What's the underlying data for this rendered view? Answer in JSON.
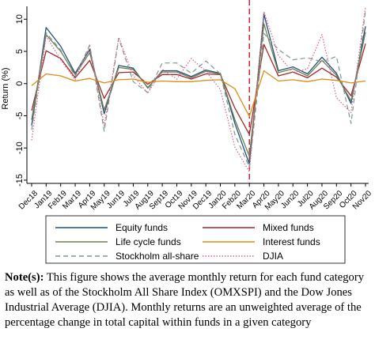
{
  "chart_data": {
    "type": "line",
    "ylabel": "Return (%)",
    "xlabel": "",
    "ylim": [
      -15.5,
      12
    ],
    "yticks": [
      -15,
      -10,
      -5,
      0,
      5,
      10
    ],
    "grid": false,
    "legend_position": "below",
    "vline": {
      "category": "Mar20",
      "color": "#c0182a",
      "style": "dashed"
    },
    "categories": [
      "Dec18",
      "Jan19",
      "Feb19",
      "Mar19",
      "Apr19",
      "May19",
      "Jun19",
      "Jul19",
      "Aug19",
      "Sep19",
      "Oct19",
      "Nov19",
      "Dec19",
      "Jan20",
      "Feb20",
      "Mar20",
      "Apr20",
      "May20",
      "Jun20",
      "Jul20",
      "Aug20",
      "Sep20",
      "Oct20",
      "Nov20"
    ],
    "series": [
      {
        "name": "Equity funds",
        "color": "#1f4e79",
        "dash": "solid",
        "values": [
          -6.5,
          8.7,
          5.8,
          1.6,
          5.3,
          -4.7,
          2.8,
          2.4,
          -0.7,
          2.0,
          2.0,
          1.1,
          2.1,
          1.6,
          -6.2,
          -12.5,
          10.8,
          2.0,
          2.6,
          1.5,
          4.1,
          1.6,
          -3.1,
          8.9
        ]
      },
      {
        "name": "Mixed funds",
        "color": "#a3282d",
        "dash": "solid",
        "values": [
          -4.2,
          5.1,
          3.9,
          0.9,
          3.6,
          -2.3,
          1.7,
          1.8,
          -0.1,
          1.4,
          1.4,
          0.7,
          1.5,
          1.4,
          -3.8,
          -7.9,
          6.1,
          1.2,
          1.8,
          0.9,
          2.4,
          1.0,
          -1.9,
          6.2
        ]
      },
      {
        "name": "Life cycle funds",
        "color": "#6e7f56",
        "dash": "solid",
        "values": [
          -5.6,
          7.6,
          5.0,
          1.4,
          4.8,
          -4.1,
          2.5,
          2.2,
          -0.6,
          1.8,
          1.8,
          0.9,
          1.9,
          1.5,
          -5.6,
          -11.3,
          9.3,
          1.7,
          2.3,
          1.2,
          3.6,
          1.3,
          -2.7,
          8.0
        ]
      },
      {
        "name": "Interest funds",
        "color": "#e08a12",
        "dash": "solid",
        "values": [
          -0.3,
          1.5,
          1.2,
          0.4,
          0.8,
          0.1,
          0.6,
          0.7,
          0.2,
          0.4,
          0.3,
          0.3,
          0.5,
          0.6,
          -0.8,
          -5.1,
          2.0,
          0.4,
          0.6,
          0.3,
          0.7,
          0.5,
          0.1,
          0.4
        ]
      },
      {
        "name": "Stockholm all-share",
        "color": "#7a9a88",
        "dash": "dashed",
        "values": [
          -7.2,
          7.9,
          5.2,
          1.1,
          6.0,
          -7.4,
          7.0,
          0.3,
          -1.4,
          3.2,
          3.2,
          1.6,
          3.5,
          1.5,
          -7.9,
          -13.0,
          7.8,
          5.3,
          3.7,
          4.0,
          3.4,
          4.2,
          -6.2,
          11.3
        ]
      },
      {
        "name": "DJIA",
        "color": "#e06088",
        "dash": "dotted",
        "values": [
          -8.8,
          7.4,
          3.7,
          0.6,
          5.8,
          -6.5,
          7.2,
          1.2,
          -1.5,
          2.2,
          0.7,
          3.9,
          1.9,
          -0.9,
          -9.9,
          -13.7,
          11.2,
          4.4,
          1.7,
          2.3,
          7.6,
          -2.2,
          -4.5,
          11.9
        ]
      }
    ]
  },
  "legend_items": [
    {
      "label": "Equity funds"
    },
    {
      "label": "Mixed funds"
    },
    {
      "label": "Life cycle funds"
    },
    {
      "label": "Interest funds"
    },
    {
      "label": "Stockholm all-share"
    },
    {
      "label": "DJIA"
    }
  ],
  "note": {
    "label": "Note(s):",
    "text": " This figure shows the average monthly return for each fund category as well as of the Stockholm All Share Index (OMXSPI) and the Dow Jones Industrial Average (DJIA). Monthly returns are an unweighted average of the percentage change in total capital within funds in a given category"
  }
}
